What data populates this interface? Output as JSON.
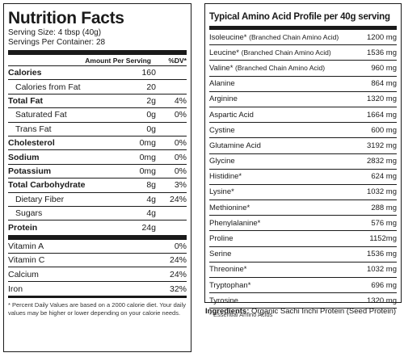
{
  "nutrition": {
    "title": "Nutrition Facts",
    "serving_size": "Serving Size: 4 tbsp (40g)",
    "servings_per_container": "Servings Per Container: 28",
    "header_amount": "Amount Per Serving",
    "header_dv": "%DV*",
    "rows": [
      {
        "label": "Calories",
        "amount": "160",
        "dv": "",
        "style": "bold"
      },
      {
        "label": "Calories from Fat",
        "amount": "20",
        "dv": "",
        "style": "indent"
      },
      {
        "label": "Total Fat",
        "amount": "2g",
        "dv": "4%",
        "style": "bold"
      },
      {
        "label": "Saturated Fat",
        "amount": "0g",
        "dv": "0%",
        "style": "indent"
      },
      {
        "label": "Trans Fat",
        "amount": "0g",
        "dv": "",
        "style": "indent"
      },
      {
        "label": "Cholesterol",
        "amount": "0mg",
        "dv": "0%",
        "style": "bold"
      },
      {
        "label": "Sodium",
        "amount": "0mg",
        "dv": "0%",
        "style": "bold"
      },
      {
        "label": "Potassium",
        "amount": "0mg",
        "dv": "0%",
        "style": "bold"
      },
      {
        "label": "Total Carbohydrate",
        "amount": "8g",
        "dv": "3%",
        "style": "bold"
      },
      {
        "label": "Dietary Fiber",
        "amount": "4g",
        "dv": "24%",
        "style": "indent"
      },
      {
        "label": "Sugars",
        "amount": "4g",
        "dv": "",
        "style": "indent"
      },
      {
        "label": "Protein",
        "amount": "24g",
        "dv": "",
        "style": "bold"
      }
    ],
    "vitamins": [
      {
        "label": "Vitamin A",
        "dv": "0%"
      },
      {
        "label": "Vitamin C",
        "dv": "24%"
      },
      {
        "label": "Calcium",
        "dv": "24%"
      },
      {
        "label": "Iron",
        "dv": "32%"
      }
    ],
    "footnote": "* Percent Daily Values are based on a 2000 calorie diet. Your daily values may be higher or lower depending on your calorie needs."
  },
  "amino": {
    "title": "Typical Amino Acid Profile per 40g serving",
    "rows": [
      {
        "label": "Isoleucine*",
        "note": "(Branched Chain Amino Acid)",
        "value": "1200 mg"
      },
      {
        "label": "Leucine*",
        "note": "(Branched Chain Amino Acid)",
        "value": "1536 mg"
      },
      {
        "label": "Valine*",
        "note": "(Branched Chain Amino Acid)",
        "value": "960 mg"
      },
      {
        "label": "Alanine",
        "note": "",
        "value": "864 mg"
      },
      {
        "label": "Arginine",
        "note": "",
        "value": "1320 mg"
      },
      {
        "label": "Aspartic Acid",
        "note": "",
        "value": "1664 mg"
      },
      {
        "label": "Cystine",
        "note": "",
        "value": "600 mg"
      },
      {
        "label": "Glutamine Acid",
        "note": "",
        "value": "3192 mg"
      },
      {
        "label": "Glycine",
        "note": "",
        "value": "2832 mg"
      },
      {
        "label": "Histidine*",
        "note": "",
        "value": "624 mg"
      },
      {
        "label": "Lysine*",
        "note": "",
        "value": "1032 mg"
      },
      {
        "label": "Methionine*",
        "note": "",
        "value": "288 mg"
      },
      {
        "label": "Phenylalanine*",
        "note": "",
        "value": "576 mg"
      },
      {
        "label": "Proline",
        "note": "",
        "value": "1152mg"
      },
      {
        "label": "Serine",
        "note": "",
        "value": "1536 mg"
      },
      {
        "label": "Threonine*",
        "note": "",
        "value": "1032 mg"
      },
      {
        "label": "Tryptophan*",
        "note": "",
        "value": "696 mg"
      },
      {
        "label": "Tyrosine",
        "note": "",
        "value": "1320 mg"
      }
    ],
    "note": "* Essential Amino Acids"
  },
  "ingredients": {
    "label": "Ingredients:",
    "text": "Organic Sachi Inchi Protein (Seed Protein)"
  }
}
